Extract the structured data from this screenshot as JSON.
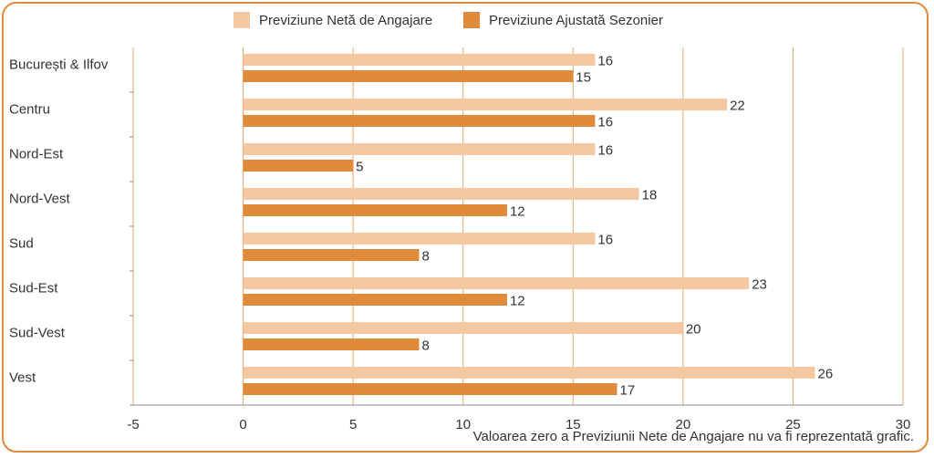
{
  "legend": {
    "series1": "Previziune Netă de Angajare",
    "series2": "Previziune Ajustată Sezonier"
  },
  "footnote": "Valoarea zero a Previziunii Nete de Angajare nu va fi reprezentată grafic.",
  "colors": {
    "frame": "#e08a3c",
    "series1": "#f6c8a2",
    "series2": "#e08a3c",
    "grid": "#e8a66a",
    "text": "#333333"
  },
  "chart_data": {
    "type": "bar",
    "orientation": "horizontal",
    "categories": [
      "București & Ilfov",
      "Centru",
      "Nord-Est",
      "Nord-Vest",
      "Sud",
      "Sud-Est",
      "Sud-Vest",
      "Vest"
    ],
    "series": [
      {
        "name": "Previziune Netă de Angajare",
        "values": [
          16,
          22,
          16,
          18,
          16,
          23,
          20,
          26
        ]
      },
      {
        "name": "Previziune Ajustată Sezonier",
        "values": [
          15,
          16,
          5,
          12,
          8,
          12,
          8,
          17
        ]
      }
    ],
    "xlim": [
      -5,
      30
    ],
    "xticks": [
      -5,
      0,
      5,
      10,
      15,
      20,
      25,
      30
    ],
    "grid": true,
    "legend_position": "top"
  }
}
